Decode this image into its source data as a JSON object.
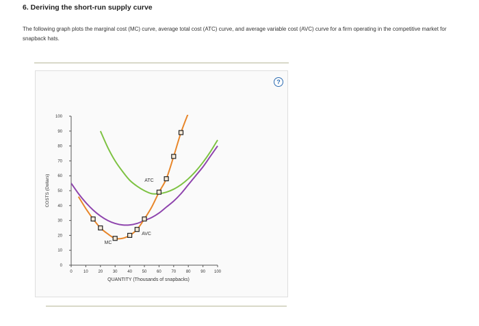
{
  "heading": "6. Deriving the short-run supply curve",
  "intro": "The following graph plots the marginal cost (MC) curve, average total cost (ATC) curve, and average variable cost (AVC) curve for a firm operating in the competitive market for snapback hats.",
  "help_icon": "question-circle-icon",
  "chart_data": {
    "type": "line",
    "xlabel": "QUANTITY (Thousands of snapbacks)",
    "ylabel": "COSTS (Dollars)",
    "xlim": [
      0,
      100
    ],
    "ylim": [
      0,
      100
    ],
    "x_ticks": [
      "0",
      "10",
      "20",
      "30",
      "40",
      "50",
      "60",
      "70",
      "80",
      "90",
      "100"
    ],
    "y_ticks": [
      "0",
      "10",
      "20",
      "30",
      "40",
      "50",
      "60",
      "70",
      "80",
      "90",
      "100"
    ],
    "series": [
      {
        "name": "MC",
        "color": "#e8862a",
        "marker": "square",
        "points": [
          [
            5,
            46
          ],
          [
            10,
            38
          ],
          [
            15,
            31
          ],
          [
            20,
            25
          ],
          [
            25,
            21
          ],
          [
            30,
            18
          ],
          [
            35,
            18
          ],
          [
            40,
            20
          ],
          [
            45,
            24
          ],
          [
            50,
            31
          ],
          [
            55,
            39
          ],
          [
            60,
            49
          ],
          [
            65,
            58
          ],
          [
            70,
            73
          ],
          [
            75,
            89
          ],
          [
            80,
            102
          ]
        ],
        "marked_points": [
          [
            15,
            31
          ],
          [
            20,
            25
          ],
          [
            30,
            18
          ],
          [
            40,
            20
          ],
          [
            45,
            24
          ],
          [
            50,
            31
          ],
          [
            60,
            49
          ],
          [
            65,
            58
          ],
          [
            70,
            73
          ],
          [
            75,
            89
          ]
        ]
      },
      {
        "name": "ATC",
        "color": "#7dc242",
        "points": [
          [
            20,
            90
          ],
          [
            25,
            79
          ],
          [
            30,
            70
          ],
          [
            35,
            63
          ],
          [
            40,
            57
          ],
          [
            45,
            53
          ],
          [
            50,
            50
          ],
          [
            55,
            48
          ],
          [
            60,
            48
          ],
          [
            65,
            49
          ],
          [
            70,
            51
          ],
          [
            75,
            54
          ],
          [
            80,
            58
          ],
          [
            85,
            63
          ],
          [
            90,
            69
          ],
          [
            95,
            76
          ],
          [
            100,
            84
          ]
        ]
      },
      {
        "name": "AVC",
        "color": "#8e44ad",
        "points": [
          [
            0,
            55
          ],
          [
            5,
            48
          ],
          [
            10,
            42
          ],
          [
            15,
            37
          ],
          [
            20,
            33
          ],
          [
            25,
            30
          ],
          [
            30,
            28
          ],
          [
            35,
            27
          ],
          [
            40,
            27
          ],
          [
            45,
            28
          ],
          [
            50,
            30
          ],
          [
            55,
            32
          ],
          [
            60,
            35
          ],
          [
            65,
            39
          ],
          [
            70,
            43
          ],
          [
            75,
            48
          ],
          [
            80,
            54
          ],
          [
            85,
            60
          ],
          [
            90,
            66
          ],
          [
            95,
            73
          ],
          [
            100,
            80
          ]
        ]
      }
    ],
    "curve_labels": [
      "MC",
      "ATC",
      "AVC"
    ]
  }
}
